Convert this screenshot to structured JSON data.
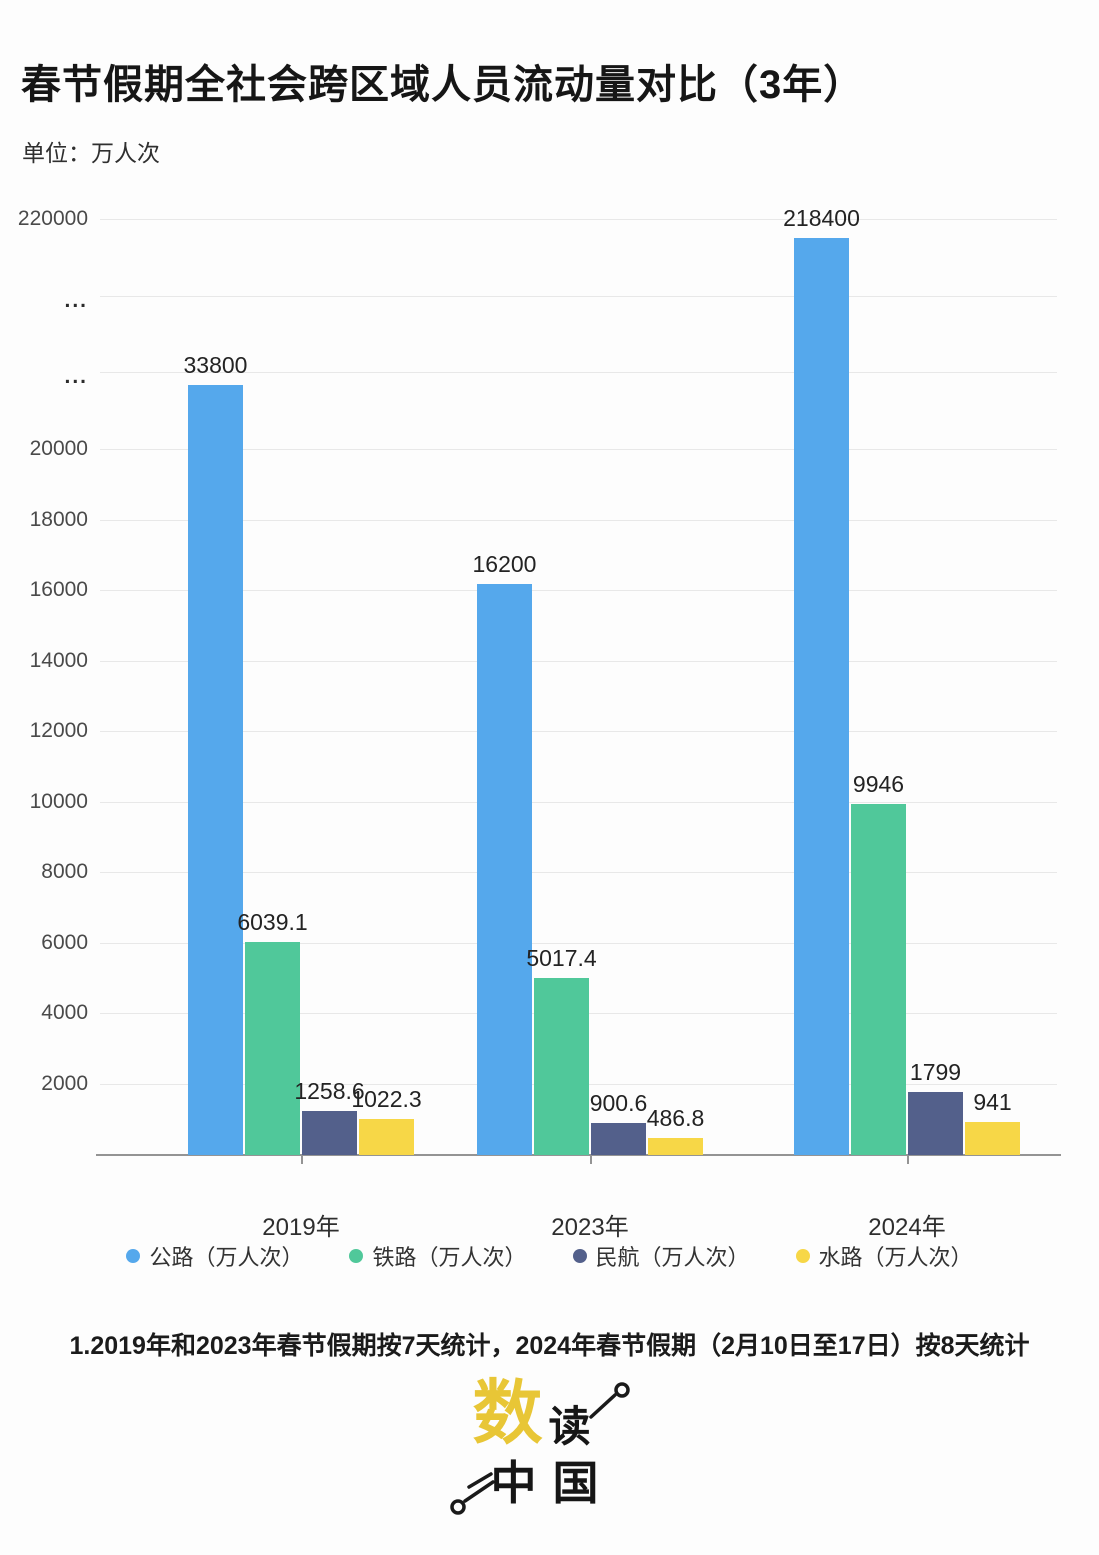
{
  "header": {
    "title": "春节假期全社会跨区域人员流动量对比（3年）",
    "unit_label": "单位：万人次"
  },
  "chart_data": {
    "type": "bar",
    "title": "春节假期全社会跨区域人员流动量对比（3年）",
    "unit": "万人次",
    "categories": [
      "2019年",
      "2023年",
      "2024年"
    ],
    "series": [
      {
        "name": "公路（万人次）",
        "color": "#55a8ec",
        "values": [
          33800,
          16200,
          218400
        ]
      },
      {
        "name": "铁路（万人次）",
        "color": "#50c89a",
        "values": [
          6039.1,
          5017.4,
          9946
        ]
      },
      {
        "name": "民航（万人次）",
        "color": "#53608b",
        "values": [
          1258.6,
          900.6,
          1799
        ]
      },
      {
        "name": "水路（万人次）",
        "color": "#f7d747",
        "values": [
          1022.3,
          486.8,
          941
        ]
      }
    ],
    "yaxis": {
      "axis_break": true,
      "ticks": [
        {
          "label": "2000",
          "units": 2000
        },
        {
          "label": "4000",
          "units": 4000
        },
        {
          "label": "6000",
          "units": 6000
        },
        {
          "label": "8000",
          "units": 8000
        },
        {
          "label": "10000",
          "units": 10000
        },
        {
          "label": "12000",
          "units": 12000
        },
        {
          "label": "14000",
          "units": 14000
        },
        {
          "label": "16000",
          "units": 16000
        },
        {
          "label": "18000",
          "units": 18000
        },
        {
          "label": "20000",
          "units": 20000
        },
        {
          "label": "...",
          "units": 22000
        },
        {
          "label": "...",
          "units": 24000
        },
        {
          "label": "220000",
          "units": 26000
        }
      ]
    },
    "break_map": [
      [
        0,
        0
      ],
      [
        20000,
        20000
      ],
      [
        33800,
        21700
      ],
      [
        218400,
        25530
      ]
    ],
    "legend_position": "bottom",
    "grid": true
  },
  "footer": {
    "note": "1.2019年和2023年春节假期按7天统计，2024年春节假期（2月10日至17日）按8天统计"
  },
  "logo": {
    "char_main": "数",
    "char_second": "读",
    "chars_bottom": "中国",
    "accent_color": "#e8c636"
  }
}
